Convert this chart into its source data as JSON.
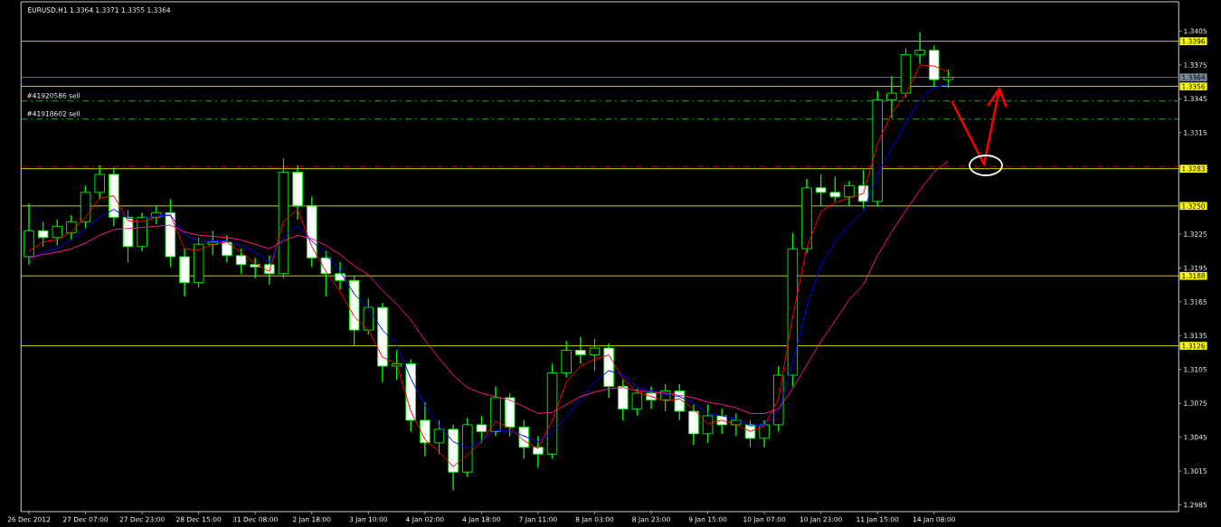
{
  "chart_data": {
    "type": "candlestick",
    "title": "EURUSD,H1  1.3364 1.3371 1.3355 1.3364",
    "ylim": [
      1.2979,
      1.3431
    ],
    "categories": [
      "26 Dec 2012",
      null,
      null,
      null,
      "27 Dec 07:00",
      null,
      null,
      null,
      "27 Dec 23:00",
      null,
      null,
      null,
      "28 Dec 15:00",
      null,
      null,
      null,
      "31 Dec 08:00",
      null,
      null,
      null,
      "2 Jan 18:00",
      null,
      null,
      null,
      "3 Jan 10:00",
      null,
      null,
      null,
      "4 Jan 02:00",
      null,
      null,
      null,
      "4 Jan 18:00",
      null,
      null,
      null,
      "7 Jan 11:00",
      null,
      null,
      null,
      "8 Jan 03:00",
      null,
      null,
      null,
      "8 Jan 23:00",
      null,
      null,
      null,
      "9 Jan 15:00",
      null,
      null,
      null,
      "10 Jan 07:00",
      null,
      null,
      null,
      "10 Jan 23:00",
      null,
      null,
      null,
      "11 Jan 15:00",
      null,
      null,
      null,
      "14 Jan 08:00",
      null
    ],
    "yticks": [
      1.2985,
      1.3015,
      1.3045,
      1.3075,
      1.3105,
      1.3135,
      1.3165,
      1.3195,
      1.3225,
      1.3315,
      1.3345,
      1.3375,
      1.3405
    ],
    "ref_lines": [
      {
        "axis": "y",
        "value": 1.3396,
        "label": "1.3396",
        "color": "#ffff00"
      },
      {
        "axis": "y",
        "value": 1.3364,
        "label": "1.3364",
        "color": "#778899"
      },
      {
        "axis": "y",
        "value": 1.3356,
        "label": "1.3356",
        "color": "#ffff00"
      },
      {
        "axis": "y",
        "value": 1.3343,
        "label": "#41920586 sell",
        "color": "#00ff00",
        "line_style": "dashed"
      },
      {
        "axis": "y",
        "value": 1.3327,
        "label": "#41918602 sell",
        "color": "#00ff00",
        "line_style": "dashed"
      },
      {
        "axis": "y",
        "value": 1.3285,
        "color": "#ff0000",
        "line_style": "dashed"
      },
      {
        "axis": "y",
        "value": 1.3283,
        "label": "1.3283",
        "color": "#ffff00"
      },
      {
        "axis": "y",
        "value": 1.325,
        "label": "1.3250",
        "color": "#ffff00"
      },
      {
        "axis": "y",
        "value": 1.3188,
        "label": "1.3188",
        "color": "#ffff00"
      },
      {
        "axis": "y",
        "value": 1.3126,
        "label": "1.3126",
        "color": "#ffff00"
      }
    ],
    "series": [
      {
        "color": "#00ff00",
        "ohlc": [
          [
            1.3205,
            1.3252,
            1.3198,
            1.3228
          ],
          [
            1.3228,
            1.3236,
            1.3214,
            1.3222
          ],
          [
            1.3222,
            1.3238,
            1.3215,
            1.3232
          ],
          [
            1.3226,
            1.3242,
            1.322,
            1.3236
          ],
          [
            1.3236,
            1.3268,
            1.323,
            1.3262
          ],
          [
            1.3262,
            1.3286,
            1.3256,
            1.3278
          ],
          [
            1.3278,
            1.3284,
            1.3232,
            1.324
          ],
          [
            1.324,
            1.3246,
            1.32,
            1.3214
          ],
          [
            1.3214,
            1.3244,
            1.321,
            1.324
          ],
          [
            1.324,
            1.325,
            1.3234,
            1.3244
          ],
          [
            1.3244,
            1.3256,
            1.3196,
            1.3205
          ],
          [
            1.3205,
            1.3212,
            1.317,
            1.3182
          ],
          [
            1.3182,
            1.3222,
            1.3178,
            1.3216
          ],
          [
            1.3216,
            1.3228,
            1.3206,
            1.3218
          ],
          [
            1.3218,
            1.3224,
            1.32,
            1.3206
          ],
          [
            1.3206,
            1.3212,
            1.319,
            1.3198
          ],
          [
            1.3198,
            1.3204,
            1.3186,
            1.3196
          ],
          [
            1.3198,
            1.3206,
            1.318,
            1.319
          ],
          [
            1.319,
            1.3292,
            1.3186,
            1.328
          ],
          [
            1.328,
            1.3286,
            1.3238,
            1.325
          ],
          [
            1.325,
            1.3258,
            1.3196,
            1.3204
          ],
          [
            1.3204,
            1.321,
            1.317,
            1.319
          ],
          [
            1.319,
            1.32,
            1.3176,
            1.3184
          ],
          [
            1.3184,
            1.3188,
            1.3126,
            1.314
          ],
          [
            1.314,
            1.3168,
            1.3136,
            1.316
          ],
          [
            1.316,
            1.3164,
            1.3094,
            1.3108
          ],
          [
            1.3108,
            1.3122,
            1.3096,
            1.311
          ],
          [
            1.311,
            1.3114,
            1.305,
            1.306
          ],
          [
            1.306,
            1.3076,
            1.3028,
            1.304
          ],
          [
            1.304,
            1.306,
            1.303,
            1.3052
          ],
          [
            1.3052,
            1.3056,
            1.2998,
            1.3014
          ],
          [
            1.3014,
            1.3062,
            1.301,
            1.3056
          ],
          [
            1.3056,
            1.3064,
            1.304,
            1.305
          ],
          [
            1.305,
            1.309,
            1.3046,
            1.308
          ],
          [
            1.308,
            1.3084,
            1.3046,
            1.3054
          ],
          [
            1.3054,
            1.306,
            1.3026,
            1.3036
          ],
          [
            1.3036,
            1.3046,
            1.3018,
            1.303
          ],
          [
            1.303,
            1.311,
            1.3026,
            1.3102
          ],
          [
            1.3102,
            1.313,
            1.3098,
            1.3122
          ],
          [
            1.3122,
            1.3134,
            1.311,
            1.3118
          ],
          [
            1.3118,
            1.3132,
            1.3104,
            1.3124
          ],
          [
            1.3124,
            1.3128,
            1.308,
            1.309
          ],
          [
            1.309,
            1.3096,
            1.306,
            1.307
          ],
          [
            1.307,
            1.3088,
            1.3064,
            1.3084
          ],
          [
            1.3084,
            1.309,
            1.307,
            1.3078
          ],
          [
            1.3078,
            1.3092,
            1.3068,
            1.3086
          ],
          [
            1.3086,
            1.3092,
            1.306,
            1.3068
          ],
          [
            1.3068,
            1.3074,
            1.3038,
            1.3048
          ],
          [
            1.3048,
            1.3074,
            1.304,
            1.3064
          ],
          [
            1.3064,
            1.307,
            1.3048,
            1.3056
          ],
          [
            1.3056,
            1.3066,
            1.3046,
            1.306
          ],
          [
            1.3056,
            1.306,
            1.3036,
            1.3044
          ],
          [
            1.3044,
            1.306,
            1.3036,
            1.3056
          ],
          [
            1.3056,
            1.3108,
            1.305,
            1.31
          ],
          [
            1.31,
            1.3226,
            1.309,
            1.3212
          ],
          [
            1.3212,
            1.3274,
            1.3208,
            1.3266
          ],
          [
            1.3266,
            1.3278,
            1.325,
            1.3262
          ],
          [
            1.3262,
            1.3276,
            1.3254,
            1.3258
          ],
          [
            1.3258,
            1.3272,
            1.325,
            1.3268
          ],
          [
            1.3268,
            1.3282,
            1.3248,
            1.3254
          ],
          [
            1.3254,
            1.3352,
            1.325,
            1.3344
          ],
          [
            1.3344,
            1.3365,
            1.3328,
            1.335
          ],
          [
            1.335,
            1.339,
            1.3346,
            1.3384
          ],
          [
            1.3384,
            1.3404,
            1.3376,
            1.3388
          ],
          [
            1.3388,
            1.3392,
            1.3356,
            1.3362
          ],
          [
            1.3362,
            1.3371,
            1.3355,
            1.3364
          ]
        ]
      },
      {
        "type": "line",
        "color": "#ff0000",
        "values": [
          1.321,
          1.3218,
          1.322,
          1.3227,
          1.324,
          1.3257,
          1.3259,
          1.3237,
          1.3236,
          1.324,
          1.3242,
          1.3212,
          1.3211,
          1.3216,
          1.3218,
          1.3209,
          1.3199,
          1.3192,
          1.3236,
          1.3247,
          1.3214,
          1.3192,
          1.3174,
          1.3152,
          1.314,
          1.3116,
          1.311,
          1.3068,
          1.3043,
          1.3032,
          1.3019,
          1.3029,
          1.3041,
          1.3059,
          1.3053,
          1.3042,
          1.3035,
          1.306,
          1.3094,
          1.3108,
          1.3114,
          1.3118,
          1.3097,
          1.3085,
          1.3081,
          1.3077,
          1.3079,
          1.307,
          1.3057,
          1.306,
          1.3056,
          1.305,
          1.3055,
          1.3079,
          1.3152,
          1.3213,
          1.3245,
          1.3253,
          1.3257,
          1.3261,
          1.3305,
          1.3332,
          1.3349,
          1.3375,
          1.3374,
          1.3369
        ]
      },
      {
        "type": "line",
        "color": "#0000ff",
        "values": [
          1.3203,
          1.3209,
          1.3213,
          1.322,
          1.323,
          1.324,
          1.3247,
          1.3239,
          1.3239,
          1.3241,
          1.3242,
          1.3225,
          1.3218,
          1.3219,
          1.3219,
          1.3215,
          1.3209,
          1.32,
          1.3223,
          1.3232,
          1.3219,
          1.3207,
          1.3192,
          1.3172,
          1.3159,
          1.314,
          1.3127,
          1.3097,
          1.3073,
          1.3055,
          1.3041,
          1.3035,
          1.3042,
          1.3051,
          1.3051,
          1.3046,
          1.3041,
          1.3049,
          1.3063,
          1.3078,
          1.3094,
          1.3104,
          1.31,
          1.3089,
          1.3086,
          1.3083,
          1.3081,
          1.3075,
          1.3066,
          1.3064,
          1.3061,
          1.3055,
          1.3056,
          1.3068,
          1.3111,
          1.3161,
          1.3197,
          1.3218,
          1.3233,
          1.3245,
          1.3278,
          1.3301,
          1.3323,
          1.3345,
          1.3355,
          1.3358
        ]
      },
      {
        "type": "line",
        "color": "#ff1493",
        "values": [
          1.3204,
          1.3207,
          1.3209,
          1.3212,
          1.3217,
          1.3224,
          1.3229,
          1.323,
          1.3231,
          1.3232,
          1.3233,
          1.3227,
          1.3224,
          1.3223,
          1.3222,
          1.322,
          1.3216,
          1.3212,
          1.3219,
          1.3224,
          1.3221,
          1.3215,
          1.3207,
          1.3197,
          1.3189,
          1.3175,
          1.3163,
          1.3149,
          1.3131,
          1.3115,
          1.31,
          1.3089,
          1.3084,
          1.3081,
          1.3078,
          1.3072,
          1.3066,
          1.3067,
          1.3074,
          1.3081,
          1.3085,
          1.3088,
          1.3089,
          1.3086,
          1.3085,
          1.3084,
          1.3082,
          1.308,
          1.3076,
          1.3074,
          1.3071,
          1.3066,
          1.3066,
          1.307,
          1.3088,
          1.3109,
          1.313,
          1.3148,
          1.3167,
          1.318,
          1.3206,
          1.3227,
          1.3246,
          1.3264,
          1.328,
          1.329
        ]
      }
    ]
  }
}
